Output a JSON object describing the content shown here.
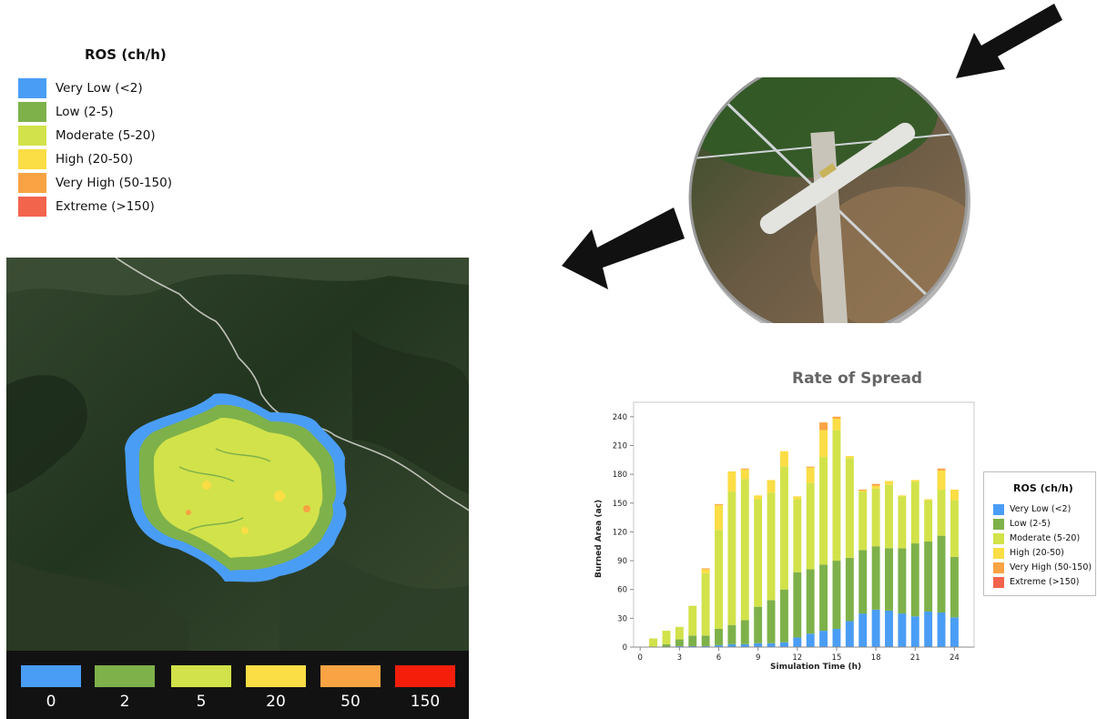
{
  "legend": {
    "title": "ROS (ch/h)",
    "items": [
      {
        "label": "Very Low (<2)",
        "color": "#4a9df5"
      },
      {
        "label": "Low (2-5)",
        "color": "#7eb14a"
      },
      {
        "label": "Moderate (5-20)",
        "color": "#d2e24a"
      },
      {
        "label": "High (20-50)",
        "color": "#fbdd45"
      },
      {
        "label": "Very High (50-150)",
        "color": "#f9a344"
      },
      {
        "label": "Extreme (>150)",
        "color": "#f3644d"
      }
    ]
  },
  "colorbar": {
    "items": [
      {
        "label": "0",
        "color": "#4a9df5"
      },
      {
        "label": "2",
        "color": "#7eb14a"
      },
      {
        "label": "5",
        "color": "#d2e24a"
      },
      {
        "label": "20",
        "color": "#fbdd45"
      },
      {
        "label": "50",
        "color": "#f9a344"
      },
      {
        "label": "150",
        "color": "#f51e0b"
      }
    ]
  },
  "chart_data": {
    "type": "bar",
    "stacked": true,
    "title": "Rate of Spread",
    "xlabel": "Simulation Time (h)",
    "ylabel": "Burned Area (ac)",
    "x": [
      1,
      2,
      3,
      4,
      5,
      6,
      7,
      8,
      9,
      10,
      11,
      12,
      13,
      14,
      15,
      16,
      17,
      18,
      19,
      20,
      21,
      22,
      23,
      24
    ],
    "xticks": [
      0,
      3,
      6,
      9,
      12,
      15,
      18,
      21,
      24
    ],
    "yticks": [
      0,
      30,
      60,
      90,
      120,
      150,
      180,
      210,
      240
    ],
    "xlim": [
      -0.5,
      25.5
    ],
    "ylim": [
      0,
      255
    ],
    "grid": false,
    "legend_position": "right",
    "series": [
      {
        "name": "Very Low (<2)",
        "color": "#4a9df5",
        "values": [
          0,
          0,
          1,
          1,
          1,
          2,
          3,
          3,
          4,
          4,
          5,
          10,
          14,
          17,
          19,
          27,
          35,
          39,
          38,
          35,
          32,
          37,
          36,
          31
        ]
      },
      {
        "name": "Low (2-5)",
        "color": "#7eb14a",
        "values": [
          0,
          3,
          7,
          11,
          11,
          17,
          20,
          25,
          38,
          45,
          55,
          68,
          67,
          69,
          71,
          66,
          66,
          66,
          65,
          68,
          76,
          73,
          80,
          63
        ]
      },
      {
        "name": "Moderate (5-20)",
        "color": "#d2e24a",
        "values": [
          9,
          14,
          13,
          31,
          65,
          103,
          139,
          147,
          112,
          112,
          128,
          76,
          90,
          112,
          136,
          104,
          61,
          60,
          66,
          54,
          64,
          43,
          48,
          59
        ]
      },
      {
        "name": "High (20-50)",
        "color": "#fbdd45",
        "values": [
          0,
          0,
          0,
          0,
          4,
          26,
          21,
          10,
          4,
          13,
          16,
          3,
          16,
          28,
          12,
          2,
          1,
          3,
          4,
          1,
          2,
          1,
          20,
          11
        ]
      },
      {
        "name": "Very High (50-150)",
        "color": "#f9a344",
        "values": [
          0,
          0,
          0,
          0,
          1,
          1,
          0,
          1,
          0,
          0,
          0,
          0,
          1,
          8,
          2,
          0,
          1,
          2,
          0,
          0,
          0,
          0,
          2,
          0
        ]
      },
      {
        "name": "Extreme (>150)",
        "color": "#f3644d",
        "values": [
          0,
          0,
          0,
          0,
          0,
          0,
          0,
          0,
          0,
          0,
          0,
          0,
          0,
          0,
          0,
          0,
          0,
          0,
          0,
          0,
          0,
          0,
          0,
          0
        ]
      }
    ]
  }
}
